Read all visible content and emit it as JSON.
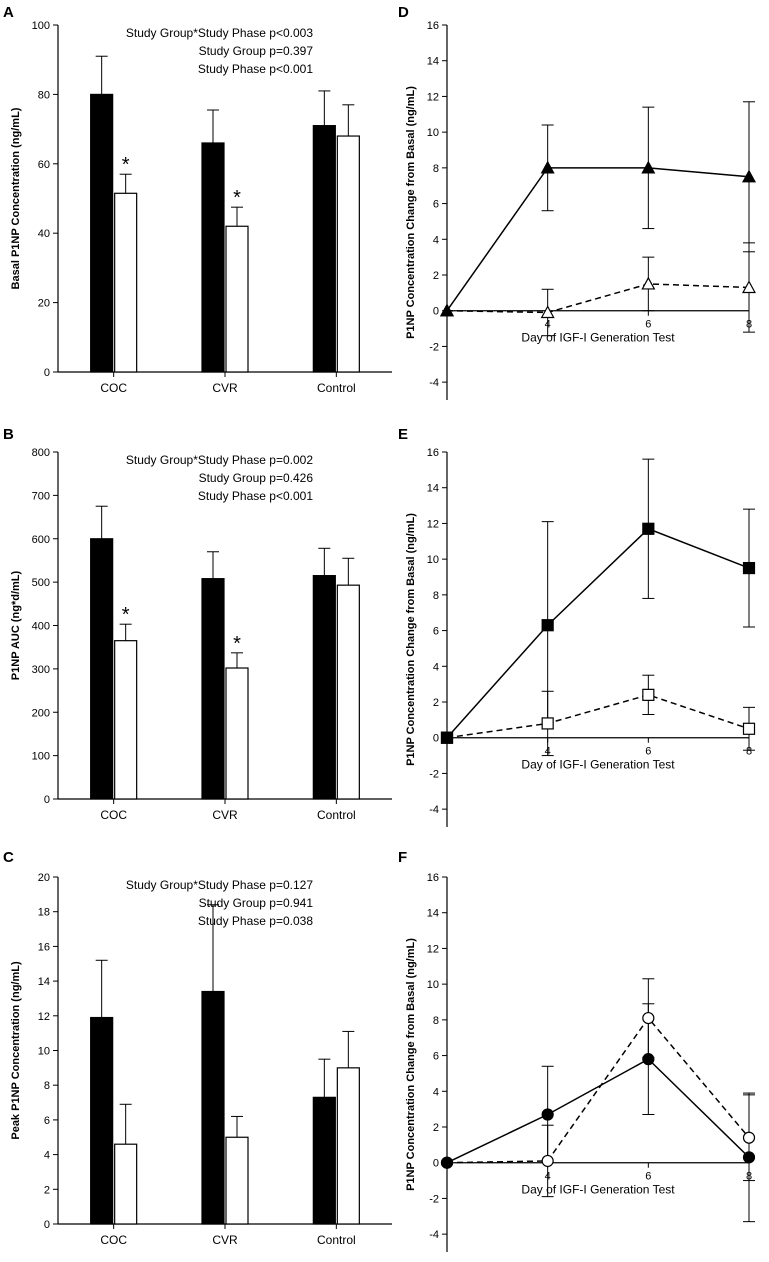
{
  "figure": {
    "panel_letters": [
      "A",
      "B",
      "C",
      "D",
      "E",
      "F"
    ]
  },
  "chart_data": [
    {
      "panel": "A",
      "type": "bar",
      "categories": [
        "COC",
        "CVR",
        "Control"
      ],
      "series": [
        {
          "name": "phase 1 (black)",
          "values": [
            80,
            66,
            71
          ],
          "errors": [
            11,
            9.5,
            10
          ]
        },
        {
          "name": "phase 2 (white)",
          "values": [
            51.5,
            42,
            68
          ],
          "errors": [
            5.5,
            5.5,
            9
          ]
        }
      ],
      "significant_white": [
        true,
        true,
        false
      ],
      "sig_marker": "*",
      "ylabel": "Basal P1NP Concentration (ng/mL)",
      "ylim": [
        0,
        100
      ],
      "yticks": [
        0,
        20,
        40,
        60,
        80,
        100
      ],
      "annotations": [
        "Study Group*Study Phase p<0.003",
        "Study Group p=0.397",
        "Study Phase p<0.001"
      ]
    },
    {
      "panel": "B",
      "type": "bar",
      "categories": [
        "COC",
        "CVR",
        "Control"
      ],
      "series": [
        {
          "name": "phase 1 (black)",
          "values": [
            600,
            508,
            515
          ],
          "errors": [
            75,
            62,
            63
          ]
        },
        {
          "name": "phase 2 (white)",
          "values": [
            365,
            302,
            493
          ],
          "errors": [
            38,
            35,
            62
          ]
        }
      ],
      "significant_white": [
        true,
        true,
        false
      ],
      "sig_marker": "*",
      "ylabel": "P1NP AUC (ng*d/mL)",
      "ylim": [
        0,
        800
      ],
      "yticks": [
        0,
        100,
        200,
        300,
        400,
        500,
        600,
        700,
        800
      ],
      "annotations": [
        "Study Group*Study Phase p=0.002",
        "Study Group p=0.426",
        "Study Phase p<0.001"
      ]
    },
    {
      "panel": "C",
      "type": "bar",
      "categories": [
        "COC",
        "CVR",
        "Control"
      ],
      "series": [
        {
          "name": "phase 1 (black)",
          "values": [
            11.9,
            13.4,
            7.3
          ],
          "errors": [
            3.3,
            5,
            2.2
          ]
        },
        {
          "name": "phase 2 (white)",
          "values": [
            4.6,
            5.0,
            9.0
          ],
          "errors": [
            2.3,
            1.2,
            2.1
          ]
        }
      ],
      "significant_white": [
        false,
        false,
        false
      ],
      "sig_marker": "*",
      "ylabel": "Peak P1NP Concentration (ng/mL)",
      "ylim": [
        0,
        20
      ],
      "yticks": [
        0,
        2,
        4,
        6,
        8,
        10,
        12,
        14,
        16,
        18,
        20
      ],
      "annotations": [
        "Study Group*Study Phase p=0.127",
        "Study Group p=0.941",
        "Study Phase p=0.038"
      ]
    },
    {
      "panel": "D",
      "type": "line",
      "marker": "triangle",
      "x": [
        2,
        4,
        6,
        8
      ],
      "xticks": [
        4,
        6,
        8
      ],
      "series": [
        {
          "name": "filled",
          "values": [
            0,
            8.0,
            8.0,
            7.5
          ],
          "errors": [
            0,
            2.4,
            3.4,
            4.2
          ]
        },
        {
          "name": "open",
          "values": [
            0,
            -0.1,
            1.5,
            1.3
          ],
          "errors": [
            0,
            1.3,
            1.5,
            2.5
          ]
        }
      ],
      "xlabel": "Day of IGF-I  Generation Test",
      "ylabel": "P1NP Concentration Change from Basal  (ng/mL)",
      "ylim": [
        -5,
        16
      ],
      "yticks": [
        -4,
        -2,
        0,
        2,
        4,
        6,
        8,
        10,
        12,
        14,
        16
      ]
    },
    {
      "panel": "E",
      "type": "line",
      "marker": "square",
      "x": [
        2,
        4,
        6,
        8
      ],
      "xticks": [
        4,
        6,
        8
      ],
      "series": [
        {
          "name": "filled",
          "values": [
            0,
            6.3,
            11.7,
            9.5
          ],
          "errors": [
            0,
            5.8,
            3.9,
            3.3
          ]
        },
        {
          "name": "open",
          "values": [
            0,
            0.8,
            2.4,
            0.5
          ],
          "errors": [
            0,
            1.8,
            1.1,
            1.2
          ]
        }
      ],
      "xlabel": "Day of IGF-I  Generation Test",
      "ylabel": "P1NP Concentration Change from Basal  (ng/mL)",
      "ylim": [
        -5,
        16
      ],
      "yticks": [
        -4,
        -2,
        0,
        2,
        4,
        6,
        8,
        10,
        12,
        14,
        16
      ]
    },
    {
      "panel": "F",
      "type": "line",
      "marker": "circle",
      "x": [
        2,
        4,
        6,
        8
      ],
      "xticks": [
        4,
        6,
        8
      ],
      "series": [
        {
          "name": "filled",
          "values": [
            0,
            2.7,
            5.8,
            0.3
          ],
          "errors": [
            0,
            2.7,
            3.1,
            3.6
          ]
        },
        {
          "name": "open",
          "values": [
            0,
            0.1,
            8.1,
            1.4
          ],
          "errors": [
            0,
            2.0,
            2.2,
            2.4
          ]
        }
      ],
      "xlabel": "Day of IGF-I  Generation Test",
      "ylabel": "P1NP Concentration Change from Basal  (ng/mL)",
      "ylim": [
        -5,
        16
      ],
      "yticks": [
        -4,
        -2,
        0,
        2,
        4,
        6,
        8,
        10,
        12,
        14,
        16
      ]
    }
  ]
}
